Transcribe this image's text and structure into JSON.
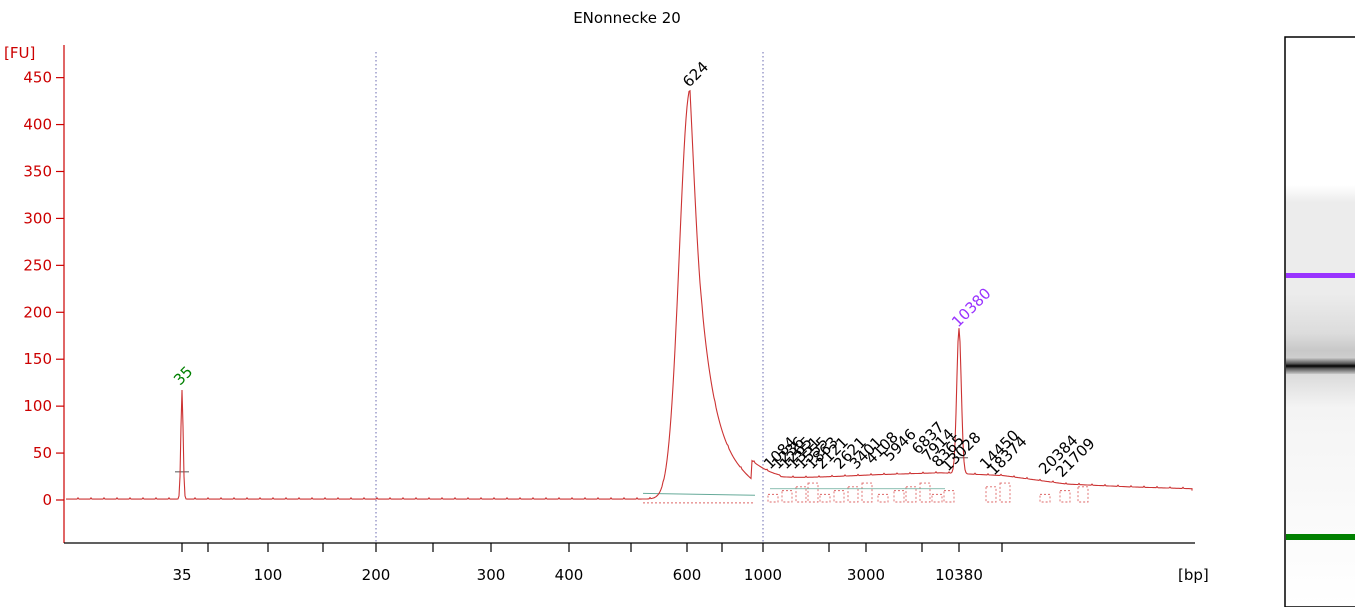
{
  "chart_data": {
    "type": "line",
    "title": "ENonnecke 20",
    "y_unit": "[FU]",
    "x_unit": "[bp]",
    "ylim": [
      -45,
      470
    ],
    "y_ticks": [
      0,
      50,
      100,
      150,
      200,
      250,
      300,
      350,
      400,
      450
    ],
    "x_ticks": [
      "35",
      "100",
      "200",
      "300",
      "400",
      "600",
      "1000",
      "3000",
      "10380"
    ],
    "markers": [
      {
        "label": "35",
        "color": "#008000",
        "height": 115
      },
      {
        "label": "10380",
        "color": "#9933ff",
        "height": 176
      }
    ],
    "main_peak": {
      "label": "624",
      "height": 435
    },
    "baseline_level": 1,
    "smear_levels": [
      22,
      25,
      28,
      30,
      27,
      18,
      15,
      13
    ],
    "small_peak_labels": [
      "1084",
      "1236",
      "1265",
      "1351",
      "1555",
      "1863",
      "2121",
      "2621",
      "3401",
      "4108",
      "5946",
      "6837",
      "7914",
      "8365",
      "13028",
      "14450",
      "18374",
      "20384",
      "21709"
    ],
    "gel_lane": {
      "bands": [
        {
          "name": "upper-marker",
          "color": "#9933ff"
        },
        {
          "name": "sample-band",
          "color": "#000000"
        },
        {
          "name": "lower-marker",
          "color": "#008000"
        }
      ]
    }
  }
}
